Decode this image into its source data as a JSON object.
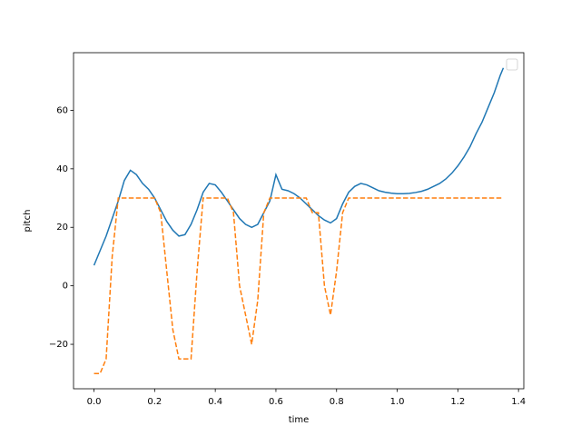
{
  "chart_data": {
    "type": "line",
    "xlabel": "time",
    "ylabel": "pitch",
    "x": [
      0,
      0.02,
      0.04,
      0.06,
      0.08,
      0.1,
      0.12,
      0.14,
      0.16,
      0.18,
      0.2,
      0.22,
      0.24,
      0.26,
      0.28,
      0.3,
      0.32,
      0.34,
      0.36,
      0.38,
      0.4,
      0.42,
      0.44,
      0.46,
      0.48,
      0.5,
      0.52,
      0.54,
      0.56,
      0.58,
      0.6,
      0.62,
      0.64,
      0.66,
      0.68,
      0.7,
      0.72,
      0.74,
      0.76,
      0.78,
      0.8,
      0.82,
      0.84,
      0.86,
      0.88,
      0.9,
      0.92,
      0.94,
      0.96,
      0.98,
      1.0,
      1.02,
      1.04,
      1.06,
      1.08,
      1.1,
      1.12,
      1.14,
      1.16,
      1.18,
      1.2,
      1.22,
      1.24,
      1.26,
      1.28,
      1.3,
      1.32,
      1.34,
      1.35
    ],
    "series": [
      {
        "color": "#1f77b4",
        "dash": false,
        "values": [
          7,
          12,
          17,
          23,
          29,
          36,
          39.5,
          38,
          35,
          33,
          30,
          26,
          22,
          19,
          17,
          17.5,
          21,
          26,
          32,
          35,
          34.5,
          32,
          29,
          26,
          23,
          21,
          20,
          21,
          25,
          29,
          38,
          33,
          32.5,
          31.5,
          30,
          28,
          26,
          24,
          22.5,
          21.5,
          23,
          28,
          32,
          34,
          35,
          34.5,
          33.5,
          32.5,
          32,
          31.7,
          31.5,
          31.5,
          31.6,
          31.9,
          32.3,
          33,
          34,
          35,
          36.5,
          38.5,
          41,
          44,
          47.5,
          52,
          56,
          61,
          66,
          72,
          74.5
        ]
      },
      {
        "color": "#ff7f0e",
        "dash": true,
        "values": [
          -30,
          -30,
          -25,
          10,
          30,
          30,
          30,
          30,
          30,
          30,
          30,
          25,
          5,
          -15,
          -25,
          -25,
          -25,
          5,
          30,
          30,
          30,
          30,
          30,
          25,
          0,
          -10,
          -20,
          -5,
          25,
          30,
          30,
          30,
          30,
          30,
          30,
          30,
          25,
          25,
          0,
          -10,
          5,
          25,
          30,
          30,
          30,
          30,
          30,
          30,
          30,
          30,
          30,
          30,
          30,
          30,
          30,
          30,
          30,
          30,
          30,
          30,
          30,
          30,
          30,
          30,
          30,
          30,
          30,
          30,
          30
        ]
      }
    ],
    "xlim": [
      -0.0675,
      1.4175
    ],
    "xticks": [
      {
        "value": 0,
        "label": "0.0"
      },
      0.2,
      0.4,
      0.6,
      0.8,
      {
        "value": 1,
        "label": "1.0"
      },
      1.2,
      1.4
    ],
    "ylim": [
      -35.2,
      79.7
    ],
    "yticks": [
      {
        "value": -20,
        "label": "−20"
      },
      0,
      20,
      40,
      60
    ],
    "grid": false,
    "legend": "upper right"
  }
}
